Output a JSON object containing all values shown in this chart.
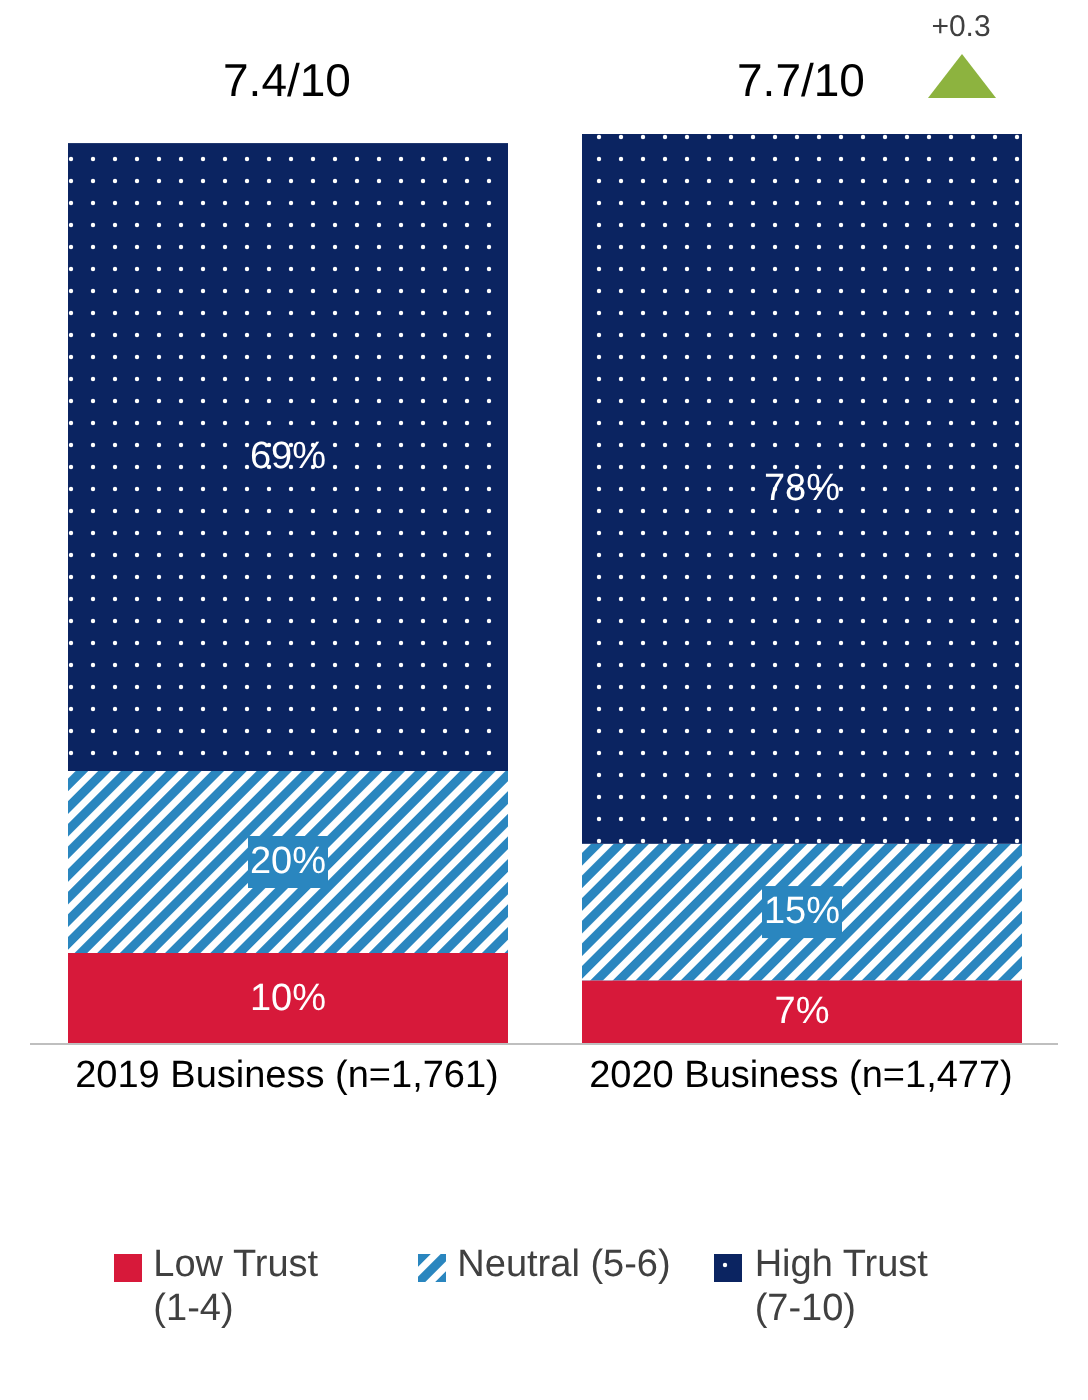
{
  "chart_data": {
    "type": "bar",
    "stacked": true,
    "categories": [
      "2019 Business (n=1,761)",
      "2020 Business (n=1,477)"
    ],
    "series": [
      {
        "name": "Low Trust (1-4)",
        "color": "#d7193a",
        "values": [
          10,
          7
        ],
        "value_labels": [
          "10%",
          "7%"
        ]
      },
      {
        "name": "Neutral (5-6)",
        "color": "#2a86bf",
        "values": [
          20,
          15
        ],
        "value_labels": [
          "20%",
          "15%"
        ]
      },
      {
        "name": "High Trust (7-10)",
        "color": "#0b2461",
        "values": [
          69,
          78
        ],
        "value_labels": [
          "69%",
          "78%"
        ]
      }
    ],
    "grid": false,
    "legend": "bottom",
    "annotations": [
      "7.4/10",
      "7.7/10",
      "+0.3"
    ]
  }
}
